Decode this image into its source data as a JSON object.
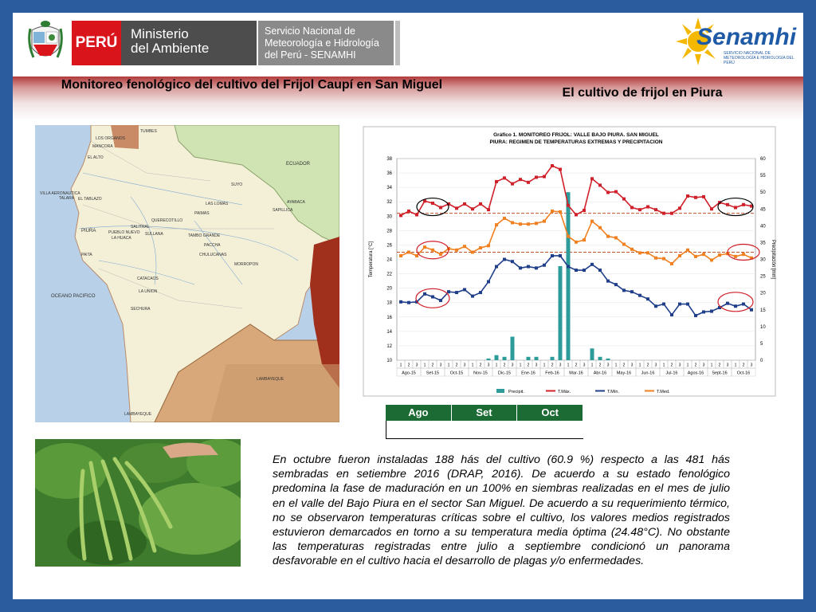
{
  "header": {
    "peru_label": "PERÚ",
    "ministerio_label": "Ministerio\ndel Ambiente",
    "senamhi_service": "Servicio Nacional de\nMeteorología e Hidrología\ndel Perú - SENAMHI",
    "senamhi_logo_text": "Senamhi",
    "senamhi_logo_sub": "SERVICIO NACIONAL DE METEOROLOGÍA E HIDROLOGÍA DEL PERÚ"
  },
  "title_left": "Monitoreo fenológico del cultivo del Frijol Caupí en San Miguel",
  "title_right": "El cultivo de frijol en Piura",
  "map": {
    "labels": [
      "TUMBES",
      "LOS ORGANOS",
      "MANCORA",
      "EL ALTO",
      "ECUADOR",
      "VILLA AERONAUTICA",
      "TALARA",
      "EL TABLAZO",
      "AYABACA",
      "SAPILLICA",
      "LAS LOMAS",
      "SUYO",
      "PAIMAS",
      "SULLANA",
      "QUERECOTILLO",
      "SALITRAL",
      "PUEBLO NUEVO",
      "LA HUACA",
      "PIURA",
      "TAMBO GRANDE",
      "PACCHA",
      "CHULUCANAS",
      "MORROPON",
      "PAITA",
      "CATACAOS",
      "LA UNION",
      "SECHURA",
      "OCEANO PACIFICO",
      "LAMBAYEQUE",
      "LAMBAYEQUE"
    ],
    "legend_note": "LAMBAYEQUE"
  },
  "chart_data": {
    "type": "line",
    "title": "Gráfico 1. MONITOREO FRIJOL: VALLE BAJO PIURA. SAN MIGUEL",
    "subtitle": "PIURA: REGIMEN DE TEMPERATURAS EXTREMAS Y PRECIPITACION",
    "ylabel": "Temperatura [°C]",
    "y2label": "Precipitación [mm]",
    "ylim": [
      10,
      38
    ],
    "y2lim": [
      0,
      60
    ],
    "yticks": [
      10,
      12,
      14,
      16,
      18,
      20,
      22,
      24,
      26,
      28,
      30,
      32,
      34,
      36,
      38
    ],
    "y2ticks": [
      0,
      5,
      10,
      15,
      20,
      25,
      30,
      35,
      40,
      45,
      50,
      55,
      60
    ],
    "decade_labels": [
      "1",
      "2",
      "3"
    ],
    "month_labels": [
      "Ago-15",
      "Set-15",
      "Oct-15",
      "Nov-15",
      "Dic-15",
      "Ene-16",
      "Feb-16",
      "Mar-16",
      "Abr-16",
      "May-16",
      "Jun-16",
      "Jul-16",
      "Agos-16",
      "Sept-16",
      "Oct-16"
    ],
    "series": [
      {
        "name": "Precipit.",
        "kind": "bar",
        "color": "#2e9b9b",
        "values": [
          0,
          0,
          0,
          0,
          0,
          0,
          0,
          0,
          0,
          0,
          0,
          0.5,
          1.5,
          1,
          7,
          0,
          1,
          1,
          0,
          1,
          28,
          50,
          0,
          0,
          3.5,
          1,
          0.5,
          0,
          0,
          0,
          0,
          0,
          0,
          0,
          0,
          0,
          0,
          0,
          0,
          0,
          0,
          0,
          0,
          0,
          0
        ]
      },
      {
        "name": "T.Máx.",
        "kind": "line",
        "color": "#d0202a",
        "values": [
          30.1,
          30.7,
          30.2,
          32.1,
          31.8,
          31.2,
          31.7,
          31.1,
          31.7,
          31.0,
          31.7,
          30.9,
          34.8,
          35.3,
          34.5,
          35.1,
          34.7,
          35.4,
          35.5,
          37.0,
          36.5,
          31.5,
          30.2,
          30.8,
          35.2,
          34.3,
          33.3,
          33.4,
          32.4,
          31.2,
          30.9,
          31.3,
          30.9,
          30.4,
          30.4,
          31.1,
          32.8,
          32.6,
          32.7,
          31.0,
          31.9,
          31.6,
          31.2,
          31.6,
          31.4
        ]
      },
      {
        "name": "T.Mín.",
        "kind": "line",
        "color": "#1f3f8a",
        "values": [
          18.1,
          18.0,
          18.1,
          19.2,
          18.8,
          18.3,
          19.5,
          19.4,
          19.8,
          18.9,
          19.4,
          20.9,
          23.0,
          24.0,
          23.7,
          22.8,
          23.0,
          22.8,
          23.2,
          24.5,
          24.5,
          23.0,
          22.5,
          22.5,
          23.3,
          22.5,
          21.0,
          20.5,
          19.7,
          19.5,
          19.0,
          18.5,
          17.5,
          17.8,
          16.3,
          17.8,
          17.8,
          16.2,
          16.7,
          16.8,
          17.3,
          17.9,
          17.5,
          17.8,
          17.0
        ]
      },
      {
        "name": "T.Med.",
        "kind": "line",
        "color": "#f08020",
        "values": [
          24.5,
          25.0,
          24.5,
          25.7,
          25.3,
          24.7,
          25.5,
          25.3,
          25.8,
          25.0,
          25.6,
          25.9,
          28.8,
          29.7,
          29.1,
          28.9,
          28.9,
          29.0,
          29.3,
          30.7,
          30.6,
          27.2,
          26.4,
          26.7,
          29.3,
          28.4,
          27.2,
          27.0,
          26.1,
          25.4,
          24.9,
          24.9,
          24.2,
          24.1,
          23.4,
          24.5,
          25.3,
          24.4,
          24.7,
          23.9,
          24.6,
          24.8,
          24.4,
          24.7,
          24.2
        ]
      }
    ],
    "reference_lines": [
      {
        "value": 30.4,
        "color": "#c0502a"
      },
      {
        "value": 25.0,
        "color": "#c0502a"
      }
    ],
    "legend_position": "bottom"
  },
  "month_table": {
    "headers": [
      "Ago",
      "Set",
      "Oct"
    ]
  },
  "body_text": "En octubre fueron instaladas 188 hás del cultivo (60.9 %) respecto a las 481 hás sembradas en setiembre 2016 (DRAP, 2016). De acuerdo a su estado fenológico predomina la fase de maduración en un 100% en siembras realizadas en el mes de julio en el valle del Bajo Piura en el sector San Miguel. De acuerdo a su requerimiento térmico, no se observaron temperaturas críticas sobre el cultivo, los valores medios registrados estuvieron demarcados en torno a su temperatura media óptima (24.48°C). No obstante las temperaturas registradas entre julio a septiembre condicionó un panorama desfavorable en el cultivo hacia el desarrollo de plagas y/o enfermedades."
}
